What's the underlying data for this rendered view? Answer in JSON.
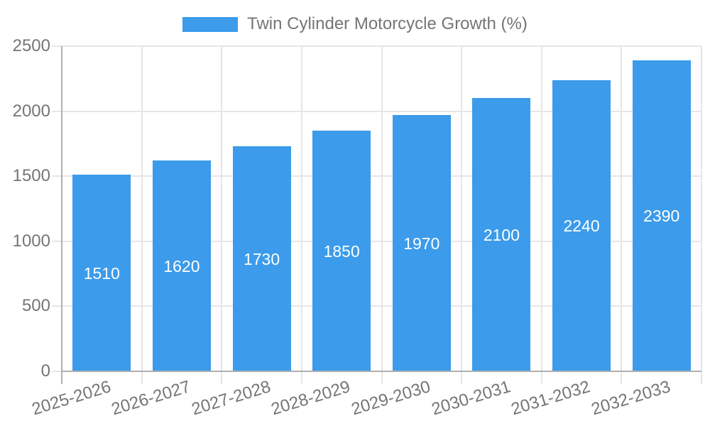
{
  "chart": {
    "background": "#ffffff",
    "legend": {
      "label": "Twin Cylinder Motorcycle Growth (%)",
      "swatch_color": "#3c9bea"
    },
    "colors": {
      "bar": "#3c9bea",
      "grid_line": "#e6e6e6",
      "axis_line": "#b0b0b0",
      "tick_label_text": "#757575",
      "value_label_text": "#ffffff"
    }
  },
  "chart_data": {
    "type": "bar",
    "title": "Twin Cylinder Motorcycle Growth (%)",
    "categories": [
      "2025-2026",
      "2026-2027",
      "2027-2028",
      "2028-2029",
      "2029-2030",
      "2030-2031",
      "2031-2032",
      "2032-2033"
    ],
    "values": [
      1510,
      1620,
      1730,
      1850,
      1970,
      2100,
      2240,
      2390
    ],
    "xlabel": "",
    "ylabel": "",
    "ylim": [
      0,
      2500
    ],
    "yticks": [
      0,
      500,
      1000,
      1500,
      2000,
      2500
    ],
    "grid": true,
    "legend_position": "top-center",
    "value_label_position": "inside-center",
    "x_label_rotation_deg": -17
  }
}
